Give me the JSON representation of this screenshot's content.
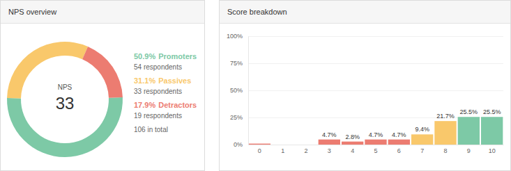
{
  "chart_data": [
    {
      "type": "pie",
      "title": "NPS overview",
      "categories": [
        "Promoters",
        "Passives",
        "Detractors"
      ],
      "values": [
        50.9,
        31.1,
        17.9
      ],
      "value_labels": [
        "50.9%",
        "31.1%",
        "17.9%"
      ],
      "colors": [
        "#7dc9a6",
        "#f9c86b",
        "#ec7c71"
      ],
      "counts": [
        54,
        33,
        19
      ],
      "count_labels": [
        "54 respondents",
        "33 respondents",
        "19 respondents"
      ],
      "total": 106,
      "total_label": "106 in total",
      "center_title": "NPS",
      "center_value": 33
    },
    {
      "type": "bar",
      "title": "Score breakdown",
      "categories": [
        "0",
        "1",
        "2",
        "3",
        "4",
        "5",
        "6",
        "7",
        "8",
        "9",
        "10"
      ],
      "values": [
        0.9,
        0,
        0,
        4.7,
        2.8,
        4.7,
        4.7,
        9.4,
        21.7,
        25.5,
        25.5
      ],
      "value_labels": [
        null,
        null,
        null,
        "4.7%",
        "2.8%",
        "4.7%",
        "4.7%",
        "9.4%",
        "21.7%",
        "25.5%",
        "25.5%"
      ],
      "data_labels": true,
      "colors": [
        "#ec7c71",
        "#ec7c71",
        "#ec7c71",
        "#ec7c71",
        "#ec7c71",
        "#ec7c71",
        "#ec7c71",
        "#f9c86b",
        "#f9c86b",
        "#7dc9a6",
        "#7dc9a6"
      ],
      "ylim": [
        0,
        100
      ],
      "yticks": [
        {
          "value": 0,
          "label": "0%"
        },
        {
          "value": 25,
          "label": "25%"
        },
        {
          "value": 50,
          "label": "50%"
        },
        {
          "value": 75,
          "label": "75%"
        },
        {
          "value": 100,
          "label": "100%"
        }
      ],
      "grid": true
    }
  ]
}
